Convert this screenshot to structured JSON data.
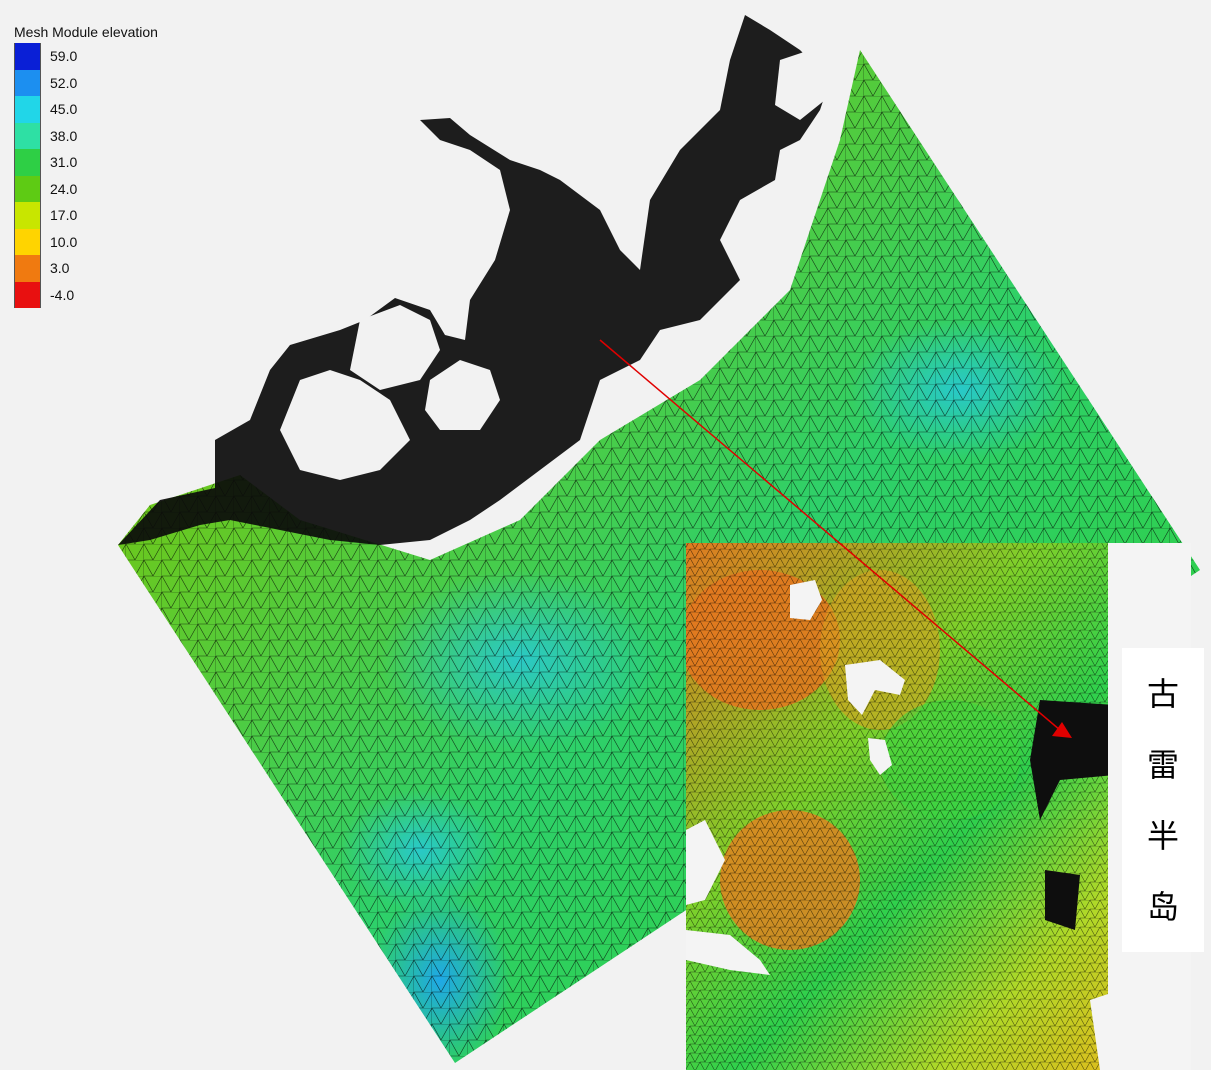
{
  "legend": {
    "title": "Mesh Module elevation",
    "items": [
      {
        "label": "59.0",
        "color": "#0a1fd6"
      },
      {
        "label": "52.0",
        "color": "#1c8ff0"
      },
      {
        "label": "45.0",
        "color": "#21d6e8"
      },
      {
        "label": "38.0",
        "color": "#2ee0a4"
      },
      {
        "label": "31.0",
        "color": "#2ecf45"
      },
      {
        "label": "24.0",
        "color": "#5ecb14"
      },
      {
        "label": "17.0",
        "color": "#c8e600"
      },
      {
        "label": "10.0",
        "color": "#ffd400"
      },
      {
        "label": "3.0",
        "color": "#f07a10"
      },
      {
        "label": "-4.0",
        "color": "#e81010"
      }
    ]
  },
  "inset_label": {
    "chars": [
      "古",
      "雷",
      "半",
      "岛"
    ]
  },
  "colors": {
    "background": "#f2f2f2",
    "mesh_line": "#000000",
    "arrow": "#e00000",
    "land_fill": "#000000",
    "inset_white": "#f4f4f4"
  }
}
